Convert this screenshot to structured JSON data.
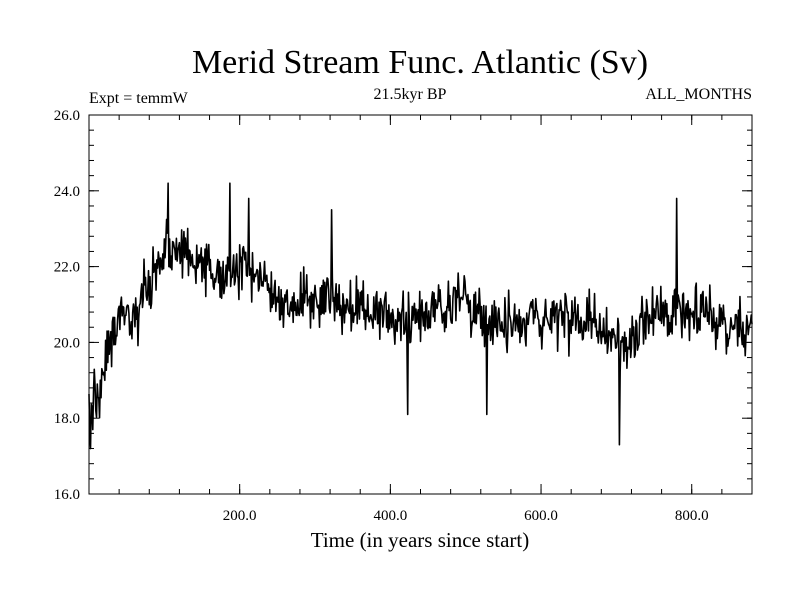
{
  "chart_data": {
    "type": "line",
    "title": "Merid Stream Func. Atlantic (Sv)",
    "subtitle_left": "Expt = temmW",
    "subtitle_center": "21.5kyr BP",
    "subtitle_right": "ALL_MONTHS",
    "xlabel": "Time (in years since start)",
    "ylabel": "",
    "xlim": [
      0,
      880
    ],
    "ylim": [
      16.0,
      26.0
    ],
    "x_ticks": [
      200.0,
      400.0,
      600.0,
      800.0
    ],
    "x_tick_labels": [
      "200.0",
      "400.0",
      "600.0",
      "800.0"
    ],
    "y_ticks": [
      16.0,
      18.0,
      20.0,
      22.0,
      24.0,
      26.0
    ],
    "y_tick_labels": [
      "16.0",
      "18.0",
      "20.0",
      "22.0",
      "24.0",
      "26.0"
    ],
    "grid": false,
    "line_color": "#000000",
    "series": [
      {
        "x": [
          0,
          40,
          60,
          80,
          100,
          120,
          150,
          180,
          200,
          230,
          260,
          300,
          350,
          400,
          450,
          500,
          550,
          600,
          650,
          700,
          720,
          750,
          800,
          850,
          880
        ],
        "values": [
          18.0,
          20.6,
          20.5,
          21.6,
          22.4,
          22.4,
          22.0,
          21.7,
          21.9,
          21.7,
          20.9,
          21.2,
          21.0,
          20.6,
          20.8,
          21.2,
          20.3,
          20.7,
          20.6,
          20.1,
          20.0,
          20.7,
          21.0,
          20.4,
          20.5
        ],
        "noise_amplitude": 1.1,
        "samples": 880,
        "extremes": [
          {
            "x": 2,
            "y": 17.2
          },
          {
            "x": 5,
            "y": 17.7
          },
          {
            "x": 105,
            "y": 24.2
          },
          {
            "x": 187,
            "y": 24.2
          },
          {
            "x": 212,
            "y": 23.8
          },
          {
            "x": 322,
            "y": 23.5
          },
          {
            "x": 423,
            "y": 18.1
          },
          {
            "x": 528,
            "y": 18.1
          },
          {
            "x": 704,
            "y": 17.3
          },
          {
            "x": 780,
            "y": 23.8
          }
        ]
      }
    ]
  }
}
